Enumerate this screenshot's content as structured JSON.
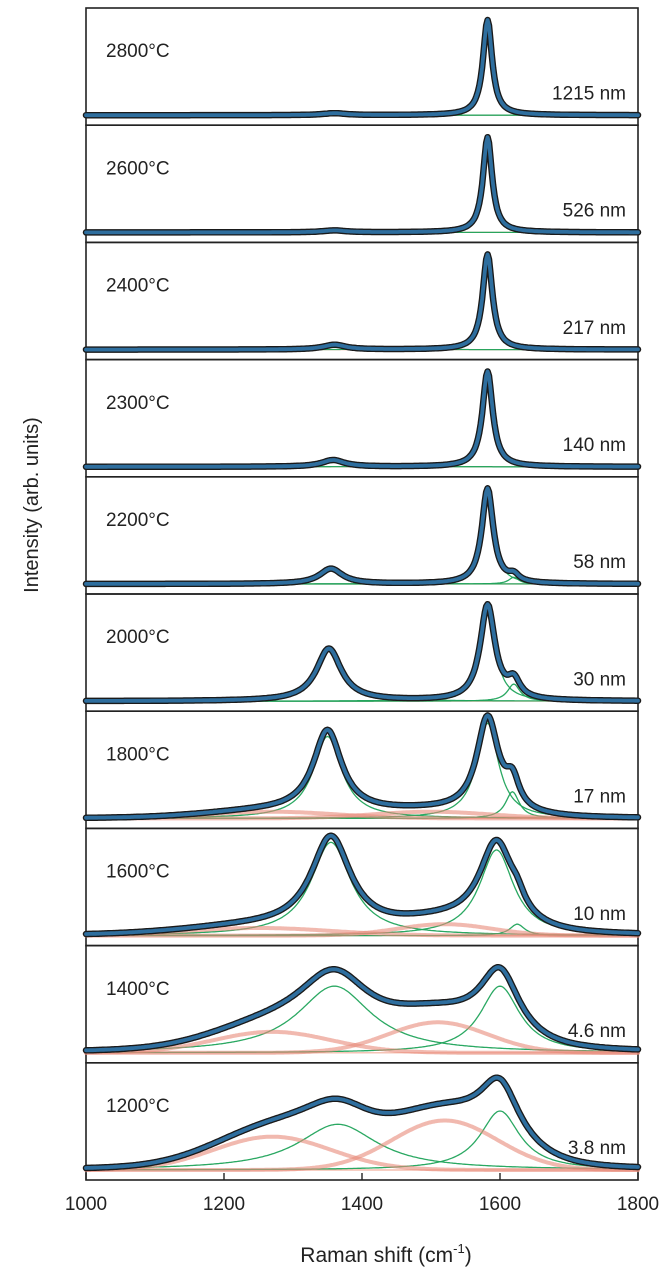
{
  "chart_data": {
    "type": "line",
    "title": "",
    "xlabel": "Raman shift (cm",
    "xlabel_sup": "-1",
    "xlabel_end": ")",
    "ylabel": "Intensity (arb. units)",
    "xlim": [
      1000,
      1800
    ],
    "xticks": [
      "1000",
      "1200",
      "1400",
      "1600",
      "1800"
    ],
    "grid": false,
    "colors": {
      "measured": "#2e6e9e",
      "measured_edge": "#1a1a1a",
      "fit_lorentzian": "#1fa35a",
      "fit_broad": "#e88a7a",
      "baseline": "#e87050",
      "frame": "#222222"
    },
    "panels": [
      {
        "temperature": "2800°C",
        "size": "1215 nm",
        "fwhm_g": 16,
        "peaks": [
          {
            "center": 1360,
            "width": 40,
            "height": 0.02,
            "kind": "lorentzian"
          },
          {
            "center": 1582,
            "width": 16,
            "height": 1.0,
            "kind": "lorentzian"
          }
        ]
      },
      {
        "temperature": "2600°C",
        "size": "526 nm",
        "peaks": [
          {
            "center": 1360,
            "width": 40,
            "height": 0.02,
            "kind": "lorentzian"
          },
          {
            "center": 1582,
            "width": 16,
            "height": 1.0,
            "kind": "lorentzian"
          }
        ]
      },
      {
        "temperature": "2400°C",
        "size": "217 nm",
        "peaks": [
          {
            "center": 1360,
            "width": 40,
            "height": 0.05,
            "kind": "lorentzian"
          },
          {
            "center": 1582,
            "width": 17,
            "height": 1.0,
            "kind": "lorentzian"
          }
        ]
      },
      {
        "temperature": "2300°C",
        "size": "140 nm",
        "peaks": [
          {
            "center": 1358,
            "width": 40,
            "height": 0.07,
            "kind": "lorentzian"
          },
          {
            "center": 1582,
            "width": 18,
            "height": 1.0,
            "kind": "lorentzian"
          }
        ]
      },
      {
        "temperature": "2200°C",
        "size": "58 nm",
        "peaks": [
          {
            "center": 1355,
            "width": 40,
            "height": 0.16,
            "kind": "lorentzian"
          },
          {
            "center": 1582,
            "width": 20,
            "height": 1.0,
            "kind": "lorentzian"
          },
          {
            "center": 1620,
            "width": 18,
            "height": 0.07,
            "kind": "lorentzian"
          }
        ]
      },
      {
        "temperature": "2000°C",
        "size": "30 nm",
        "peaks": [
          {
            "center": 1352,
            "width": 44,
            "height": 0.55,
            "kind": "lorentzian"
          },
          {
            "center": 1582,
            "width": 26,
            "height": 1.0,
            "kind": "lorentzian"
          },
          {
            "center": 1620,
            "width": 22,
            "height": 0.18,
            "kind": "lorentzian"
          }
        ]
      },
      {
        "temperature": "1800°C",
        "size": "17 nm",
        "peaks": [
          {
            "center": 1350,
            "width": 50,
            "height": 0.86,
            "kind": "lorentzian"
          },
          {
            "center": 1582,
            "width": 38,
            "height": 1.0,
            "kind": "lorentzian"
          },
          {
            "center": 1618,
            "width": 24,
            "height": 0.28,
            "kind": "lorentzian"
          },
          {
            "center": 1270,
            "width": 220,
            "height": 0.07,
            "kind": "gaussian"
          },
          {
            "center": 1500,
            "width": 200,
            "height": 0.07,
            "kind": "gaussian"
          }
        ]
      },
      {
        "temperature": "1600°C",
        "size": "10 nm",
        "peaks": [
          {
            "center": 1355,
            "width": 70,
            "height": 0.98,
            "kind": "lorentzian"
          },
          {
            "center": 1595,
            "width": 60,
            "height": 0.9,
            "kind": "lorentzian"
          },
          {
            "center": 1625,
            "width": 26,
            "height": 0.12,
            "kind": "lorentzian"
          },
          {
            "center": 1250,
            "width": 250,
            "height": 0.08,
            "kind": "gaussian"
          },
          {
            "center": 1520,
            "width": 160,
            "height": 0.12,
            "kind": "gaussian"
          }
        ]
      },
      {
        "temperature": "1400°C",
        "size": "4.6 nm",
        "peaks": [
          {
            "center": 1360,
            "width": 130,
            "height": 0.7,
            "kind": "lorentzian"
          },
          {
            "center": 1600,
            "width": 70,
            "height": 0.7,
            "kind": "lorentzian"
          },
          {
            "center": 1270,
            "width": 200,
            "height": 0.22,
            "kind": "gaussian"
          },
          {
            "center": 1510,
            "width": 170,
            "height": 0.32,
            "kind": "gaussian"
          }
        ]
      },
      {
        "temperature": "1200°C",
        "size": "3.8 nm",
        "peaks": [
          {
            "center": 1365,
            "width": 140,
            "height": 0.48,
            "kind": "lorentzian"
          },
          {
            "center": 1600,
            "width": 70,
            "height": 0.62,
            "kind": "lorentzian"
          },
          {
            "center": 1270,
            "width": 200,
            "height": 0.35,
            "kind": "gaussian"
          },
          {
            "center": 1520,
            "width": 180,
            "height": 0.52,
            "kind": "gaussian"
          }
        ]
      }
    ]
  }
}
